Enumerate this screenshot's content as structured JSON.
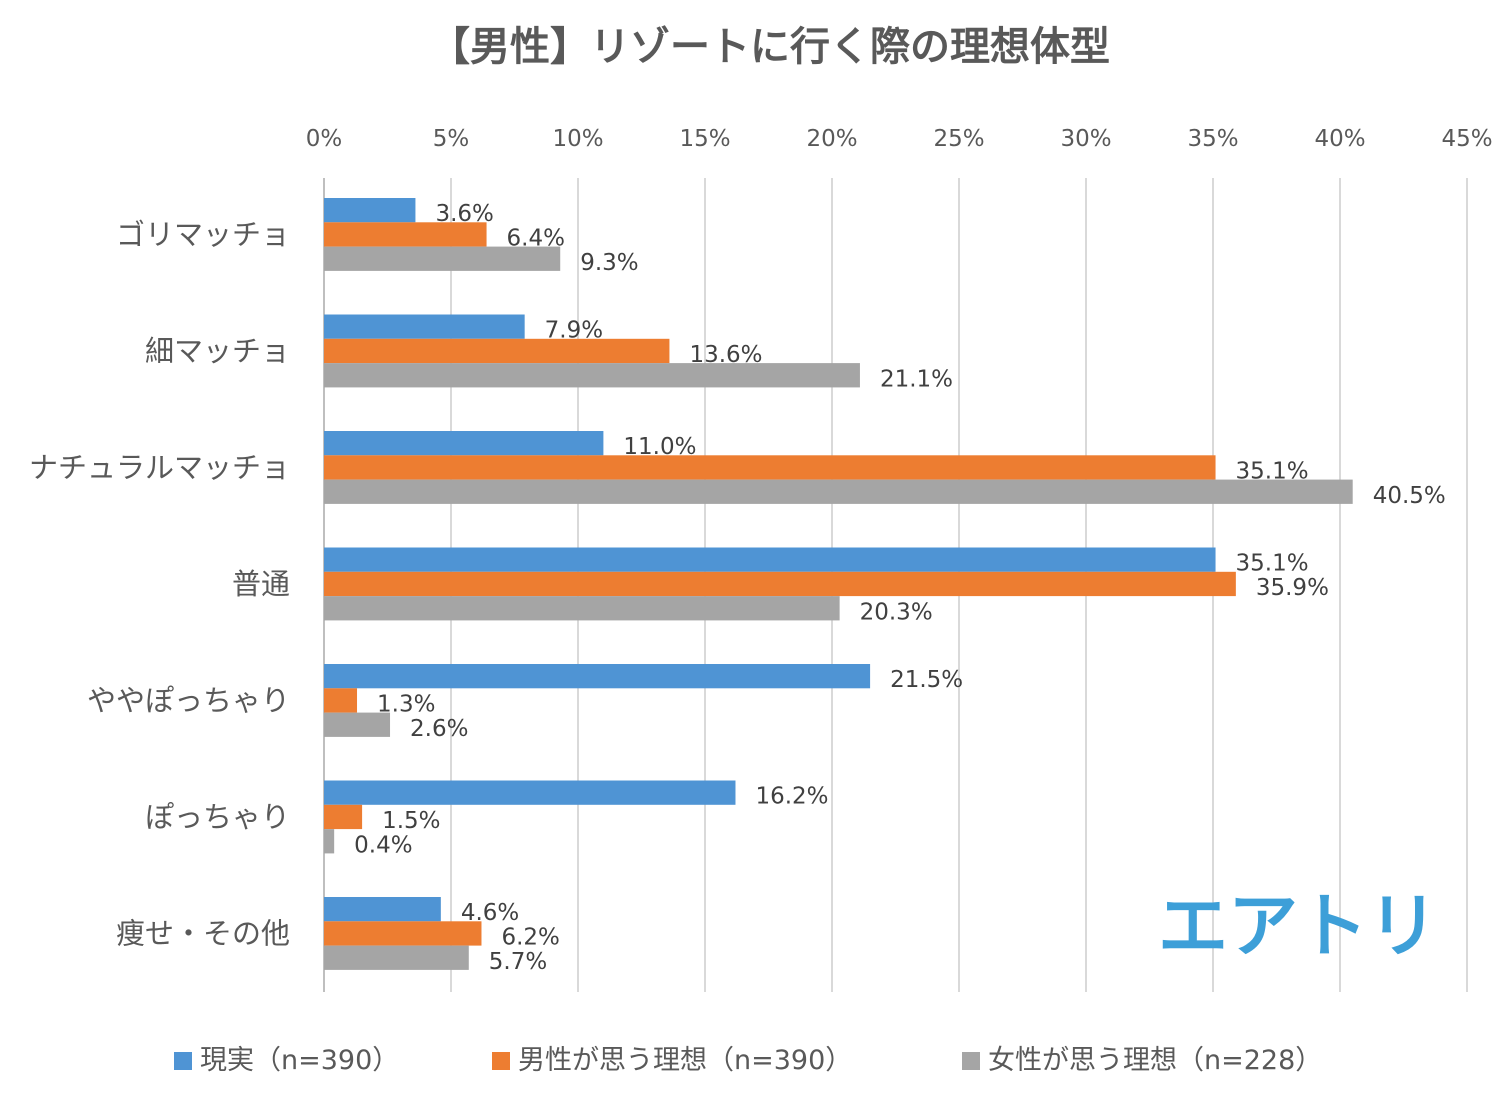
{
  "chart_data": {
    "type": "bar",
    "orientation": "horizontal",
    "title": "【男性】リゾートに行く際の理想体型",
    "categories": [
      "ゴリマッチョ",
      "細マッチョ",
      "ナチュラルマッチョ",
      "普通",
      "ややぽっちゃり",
      "ぽっちゃり",
      "痩せ・その他"
    ],
    "series": [
      {
        "name": "現実（n=390）",
        "color": "#4f94d4",
        "values": [
          3.6,
          7.9,
          11.0,
          35.1,
          21.5,
          16.2,
          4.6
        ]
      },
      {
        "name": "男性が思う理想（n=390）",
        "color": "#ed7d31",
        "values": [
          6.4,
          13.6,
          35.1,
          35.9,
          1.3,
          1.5,
          6.2
        ]
      },
      {
        "name": "女性が思う理想（n=228）",
        "color": "#a5a5a5",
        "values": [
          9.3,
          21.1,
          40.5,
          20.3,
          2.6,
          0.4,
          5.7
        ]
      }
    ],
    "xticks": [
      "0%",
      "5%",
      "10%",
      "15%",
      "20%",
      "25%",
      "30%",
      "35%",
      "40%",
      "45%"
    ],
    "xlim": [
      0,
      45
    ],
    "value_suffix": "%",
    "xaxis_position": "top",
    "grid": true,
    "legend": "bottom"
  },
  "brand": {
    "logo_text": "エアトリ",
    "color": "#3d9fd8"
  }
}
